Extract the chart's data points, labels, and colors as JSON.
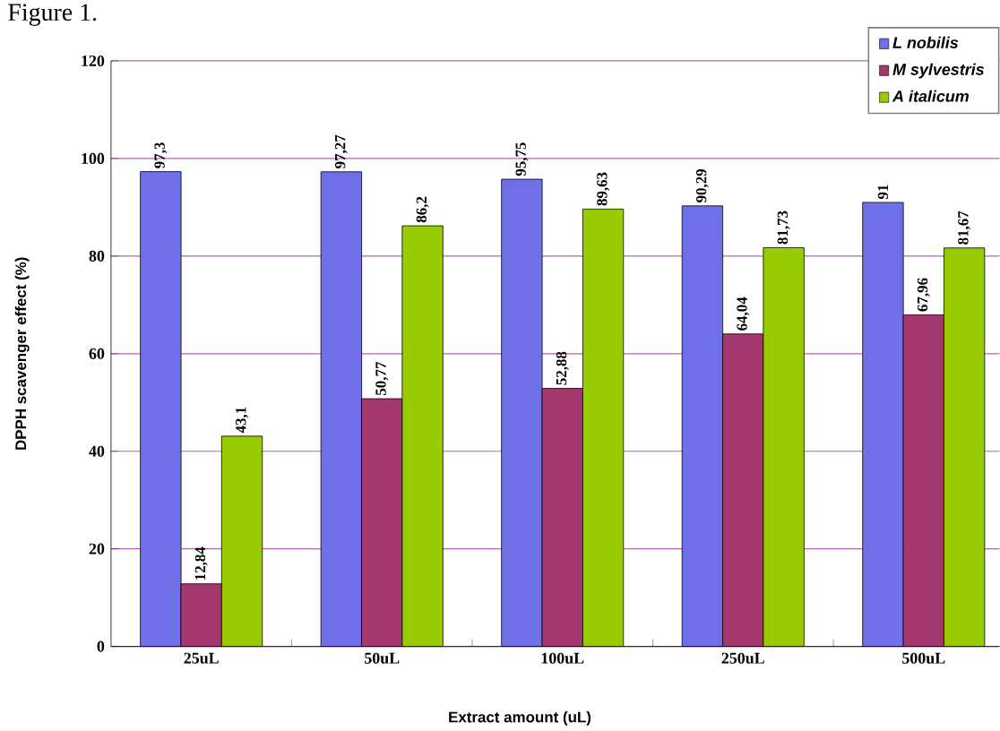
{
  "chart_data": {
    "type": "bar",
    "ylabel": "DPPH scavenger effect (%)",
    "xlabel": "Extract amount (uL)",
    "annotations": [
      "Figure 1."
    ],
    "categories": [
      "25uL",
      "50uL",
      "100uL",
      "250uL",
      "500uL"
    ],
    "series": [
      {
        "name": "L nobilis",
        "color": "#6f6fe8",
        "values": [
          97.3,
          97.27,
          95.75,
          90.29,
          91
        ],
        "value_labels": [
          "97,3",
          "97,27",
          "95,75",
          "90,29",
          "91"
        ]
      },
      {
        "name": "M sylvestris",
        "color": "#a3386e",
        "values": [
          12.84,
          50.77,
          52.88,
          64.04,
          67.96
        ],
        "value_labels": [
          "12,84",
          "50,77",
          "52,88",
          "64,04",
          "67,96"
        ]
      },
      {
        "name": "A italicum",
        "color": "#99cc00",
        "values": [
          43.1,
          86.2,
          89.63,
          81.73,
          81.67
        ],
        "value_labels": [
          "43,1",
          "86,2",
          "89,63",
          "81,73",
          "81,67"
        ]
      }
    ],
    "ylim": [
      0,
      120
    ],
    "yticks": [
      0,
      20,
      40,
      60,
      80,
      100,
      120
    ],
    "grid": "y",
    "legend": "top right"
  }
}
